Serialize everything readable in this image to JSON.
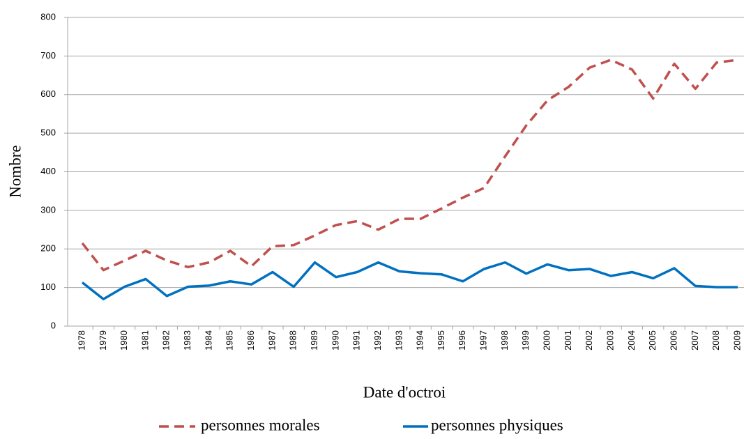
{
  "chart_data": {
    "type": "line",
    "xlabel": "Date d'octroi",
    "ylabel": "Nombre",
    "categories": [
      "1978",
      "1979",
      "1980",
      "1981",
      "1982",
      "1983",
      "1984",
      "1985",
      "1986",
      "1987",
      "1988",
      "1989",
      "1990",
      "1991",
      "1992",
      "1993",
      "1994",
      "1995",
      "1996",
      "1997",
      "1998",
      "1999",
      "2000",
      "2001",
      "2002",
      "2003",
      "2004",
      "2005",
      "2006",
      "2007",
      "2008",
      "2009"
    ],
    "series": [
      {
        "name": "personnes morales",
        "color": "#c0504d",
        "dashed": true,
        "values": [
          215,
          145,
          170,
          195,
          170,
          153,
          165,
          195,
          155,
          207,
          210,
          235,
          262,
          272,
          250,
          278,
          278,
          305,
          333,
          358,
          440,
          520,
          585,
          620,
          670,
          690,
          665,
          590,
          680,
          615,
          683,
          690
        ]
      },
      {
        "name": "personnes physiques",
        "color": "#0070c0",
        "dashed": false,
        "values": [
          113,
          70,
          102,
          122,
          78,
          102,
          105,
          116,
          108,
          140,
          102,
          165,
          127,
          140,
          165,
          142,
          137,
          134,
          116,
          148,
          165,
          136,
          160,
          145,
          148,
          130,
          140,
          124,
          150,
          104,
          101,
          101
        ]
      }
    ],
    "ylim": [
      0,
      800
    ],
    "yticks": [
      0,
      100,
      200,
      300,
      400,
      500,
      600,
      700,
      800
    ],
    "grid": true,
    "legend": "bottom"
  }
}
